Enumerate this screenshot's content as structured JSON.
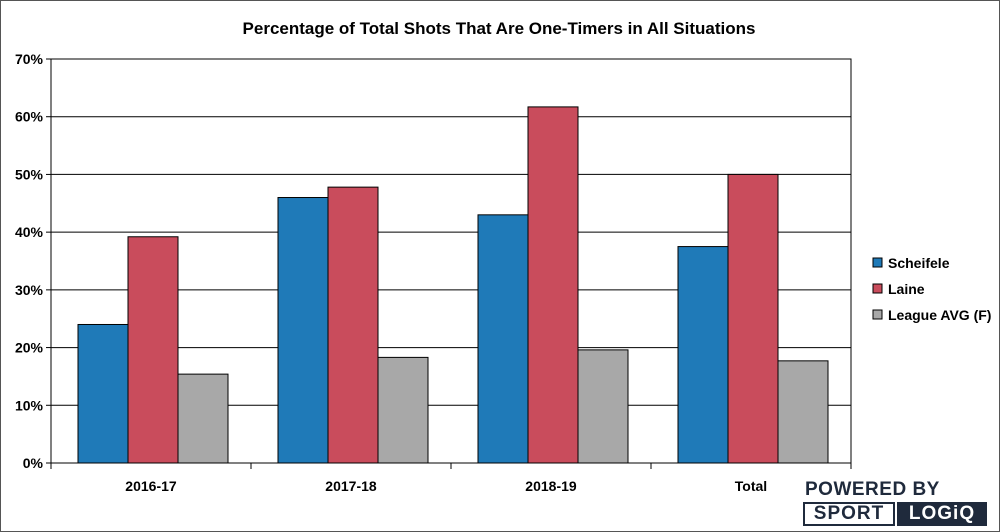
{
  "chart_data": {
    "type": "bar",
    "title": "Percentage of Total Shots That Are One-Timers in All Situations",
    "xlabel": "",
    "ylabel": "",
    "categories": [
      "2016-17",
      "2017-18",
      "2018-19",
      "Total"
    ],
    "series": [
      {
        "name": "Scheifele",
        "color": "#1f7ab8",
        "values": [
          24,
          46,
          43,
          37.5
        ]
      },
      {
        "name": "Laine",
        "color": "#c94c5c",
        "values": [
          39.2,
          47.8,
          61.7,
          50
        ]
      },
      {
        "name": "League AVG (F)",
        "color": "#a8a8a8",
        "values": [
          15.4,
          18.3,
          19.6,
          17.7
        ]
      }
    ],
    "ylim": [
      0,
      70
    ],
    "yticks": [
      0,
      10,
      20,
      30,
      40,
      50,
      60,
      70
    ],
    "ytick_labels": [
      "0%",
      "10%",
      "20%",
      "30%",
      "40%",
      "50%",
      "60%",
      "70%"
    ],
    "grid": true,
    "legend_position": "right"
  },
  "branding": {
    "top": "POWERED BY",
    "left": "SPORT",
    "right": "LOGiQ"
  }
}
